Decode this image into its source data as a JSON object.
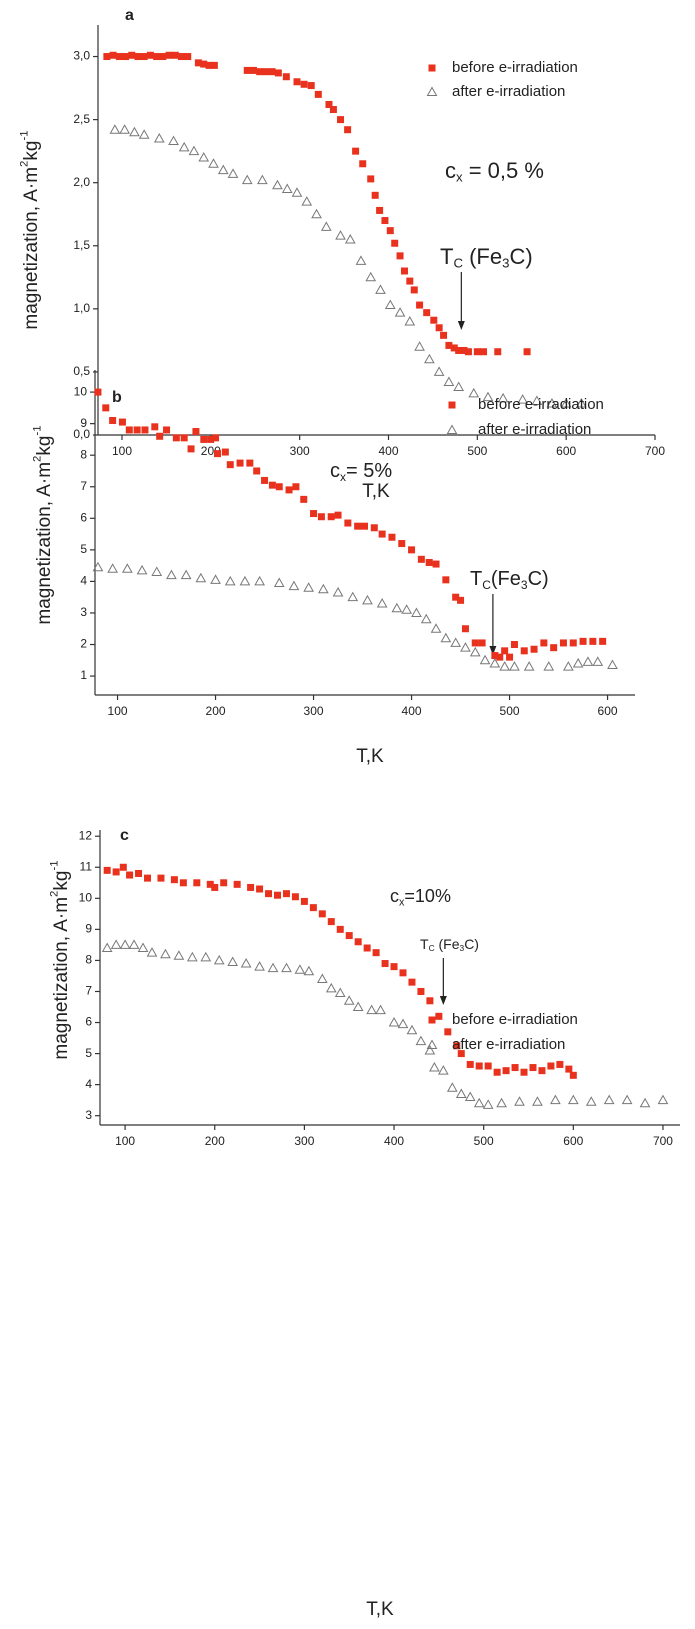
{
  "chart_data": [
    {
      "type": "scatter",
      "panel_label": "a",
      "x_label": "T,K",
      "y_label": [
        {
          "text": "magnetization, A·m"
        },
        {
          "sup": "2"
        },
        {
          "text": "kg"
        },
        {
          "sup": "-1"
        }
      ],
      "cx_label": [
        {
          "text": "c"
        },
        {
          "sub": "x"
        },
        {
          "text": " = 0,5 %"
        }
      ],
      "tc_label": [
        {
          "text": "T"
        },
        {
          "sub": "C"
        },
        {
          "text": " (Fe"
        },
        {
          "sub": "3"
        },
        {
          "text": "C)"
        }
      ],
      "tc_arrow_x": 482,
      "xlim": [
        73,
        700
      ],
      "xticks": [
        100,
        200,
        300,
        400,
        500,
        600,
        700
      ],
      "ylim": [
        0,
        3.25
      ],
      "yticks": [
        {
          "value": 0,
          "label": "0,0"
        },
        {
          "value": 0.5,
          "label": "0,5"
        },
        {
          "value": 1,
          "label": "1,0"
        },
        {
          "value": 1.5,
          "label": "1,5"
        },
        {
          "value": 2,
          "label": "2,0"
        },
        {
          "value": 2.5,
          "label": "2,5"
        },
        {
          "value": 3,
          "label": "3,0"
        }
      ],
      "series": [
        {
          "name": "before e-irradiation",
          "color": "#e8321e",
          "marker": "square",
          "x": [
            83,
            90,
            97,
            104,
            111,
            118,
            125,
            132,
            139,
            146,
            153,
            160,
            167,
            174,
            186,
            192,
            198,
            204,
            241,
            248,
            255,
            262,
            269,
            276,
            285,
            297,
            305,
            313,
            321,
            333,
            338,
            346,
            354,
            363,
            371,
            380,
            385,
            390,
            396,
            402,
            407,
            413,
            418,
            424,
            429,
            435,
            443,
            451,
            457,
            462,
            468,
            474,
            479,
            485,
            490,
            500,
            507,
            523,
            556
          ],
          "values": [
            3.0,
            3.01,
            3.0,
            3.0,
            3.01,
            3.0,
            3.0,
            3.01,
            3.0,
            3.0,
            3.01,
            3.01,
            3.0,
            3.0,
            2.95,
            2.94,
            2.93,
            2.93,
            2.89,
            2.89,
            2.88,
            2.88,
            2.88,
            2.87,
            2.84,
            2.8,
            2.78,
            2.77,
            2.7,
            2.62,
            2.58,
            2.5,
            2.42,
            2.25,
            2.15,
            2.03,
            1.9,
            1.78,
            1.7,
            1.62,
            1.52,
            1.42,
            1.3,
            1.22,
            1.15,
            1.03,
            0.97,
            0.91,
            0.85,
            0.79,
            0.71,
            0.69,
            0.67,
            0.67,
            0.66,
            0.66,
            0.66,
            0.66,
            0.66
          ]
        },
        {
          "name": "after e-irradiation",
          "color": "#777777",
          "marker": "triangle",
          "x": [
            92,
            103,
            114,
            125,
            142,
            158,
            170,
            181,
            192,
            203,
            214,
            225,
            241,
            258,
            275,
            286,
            297,
            308,
            319,
            330,
            346,
            357,
            369,
            380,
            391,
            402,
            413,
            424,
            435,
            446,
            457,
            468,
            479,
            496,
            512,
            529,
            551,
            567,
            584,
            600,
            617
          ],
          "values": [
            2.42,
            2.42,
            2.4,
            2.38,
            2.35,
            2.33,
            2.28,
            2.25,
            2.2,
            2.15,
            2.1,
            2.07,
            2.02,
            2.02,
            1.98,
            1.95,
            1.92,
            1.85,
            1.75,
            1.65,
            1.58,
            1.55,
            1.38,
            1.25,
            1.15,
            1.03,
            0.97,
            0.9,
            0.7,
            0.6,
            0.5,
            0.42,
            0.38,
            0.33,
            0.3,
            0.29,
            0.28,
            0.27,
            0.25,
            0.25,
            0.25
          ]
        }
      ]
    },
    {
      "type": "scatter",
      "panel_label": "b",
      "x_label": "T,K",
      "y_label": [
        {
          "text": "magnetization, A·m"
        },
        {
          "sup": "2"
        },
        {
          "text": "kg"
        },
        {
          "sup": "-1"
        }
      ],
      "cx_label": [
        {
          "text": "c"
        },
        {
          "sub": "x"
        },
        {
          "text": "= 5%"
        }
      ],
      "tc_label": [
        {
          "text": "T"
        },
        {
          "sub": "C"
        },
        {
          "text": "(Fe"
        },
        {
          "sub": "3"
        },
        {
          "text": "C)"
        }
      ],
      "tc_arrow_x": 483,
      "xlim": [
        77,
        628
      ],
      "xticks": [
        100,
        200,
        300,
        400,
        500,
        600
      ],
      "ylim": [
        0.4,
        10.7
      ],
      "yticks": [
        1,
        2,
        3,
        4,
        5,
        6,
        7,
        8,
        9,
        10
      ],
      "series": [
        {
          "name": "before e-irradiation",
          "color": "#e8321e",
          "marker": "square",
          "x": [
            80,
            88,
            95,
            105,
            112,
            120,
            128,
            138,
            143,
            150,
            160,
            168,
            175,
            180,
            188,
            195,
            200,
            202,
            210,
            215,
            225,
            235,
            242,
            250,
            258,
            265,
            275,
            282,
            290,
            300,
            308,
            318,
            325,
            335,
            345,
            352,
            362,
            370,
            380,
            390,
            400,
            410,
            418,
            425,
            435,
            445,
            450,
            455,
            465,
            472,
            485,
            490,
            495,
            500,
            505,
            515,
            525,
            535,
            545,
            555,
            565,
            575,
            585,
            595
          ],
          "values": [
            10.0,
            9.5,
            9.1,
            9.05,
            8.8,
            8.8,
            8.8,
            8.9,
            8.6,
            8.8,
            8.55,
            8.55,
            8.2,
            8.75,
            8.5,
            8.5,
            8.55,
            8.05,
            8.1,
            7.7,
            7.75,
            7.75,
            7.5,
            7.2,
            7.05,
            7.0,
            6.9,
            7.0,
            6.6,
            6.15,
            6.05,
            6.05,
            6.1,
            5.85,
            5.75,
            5.75,
            5.7,
            5.5,
            5.4,
            5.2,
            5.0,
            4.7,
            4.6,
            4.55,
            4.05,
            3.5,
            3.4,
            2.5,
            2.05,
            2.05,
            1.65,
            1.6,
            1.8,
            1.6,
            2.0,
            1.8,
            1.85,
            2.05,
            1.9,
            2.05,
            2.05,
            2.1,
            2.1,
            2.1
          ]
        },
        {
          "name": "after e-irradiation",
          "color": "#777777",
          "marker": "triangle",
          "x": [
            80,
            95,
            110,
            125,
            140,
            155,
            170,
            185,
            200,
            215,
            230,
            245,
            265,
            280,
            295,
            310,
            325,
            340,
            355,
            370,
            385,
            395,
            405,
            415,
            425,
            435,
            445,
            455,
            465,
            475,
            485,
            495,
            505,
            520,
            540,
            560,
            570,
            580,
            590,
            605
          ],
          "values": [
            4.45,
            4.4,
            4.4,
            4.35,
            4.3,
            4.2,
            4.2,
            4.1,
            4.05,
            4.0,
            4.0,
            4.0,
            3.95,
            3.85,
            3.8,
            3.75,
            3.65,
            3.5,
            3.4,
            3.3,
            3.15,
            3.1,
            3.0,
            2.8,
            2.5,
            2.2,
            2.05,
            1.9,
            1.75,
            1.5,
            1.4,
            1.3,
            1.3,
            1.3,
            1.3,
            1.3,
            1.4,
            1.45,
            1.45,
            1.35
          ]
        }
      ]
    },
    {
      "type": "scatter",
      "panel_label": "c",
      "x_label": "T,K",
      "y_label": [
        {
          "text": "magnetization, A·m"
        },
        {
          "sup": "2"
        },
        {
          "text": "kg"
        },
        {
          "sup": "-1"
        }
      ],
      "cx_label": [
        {
          "text": "c"
        },
        {
          "sub": "x"
        },
        {
          "text": "=10%"
        }
      ],
      "tc_label": [
        {
          "text": "T"
        },
        {
          "sub": "C"
        },
        {
          "text": " (Fe"
        },
        {
          "sub": "3"
        },
        {
          "text": "C)"
        }
      ],
      "tc_arrow_x": 455,
      "xlim": [
        72,
        719
      ],
      "xticks": [
        100,
        200,
        300,
        400,
        500,
        600,
        700
      ],
      "ylim": [
        2.7,
        12.2
      ],
      "yticks": [
        3,
        4,
        5,
        6,
        7,
        8,
        9,
        10,
        11,
        12
      ],
      "series": [
        {
          "name": "before e-irradiation",
          "color": "#e8321e",
          "marker": "square",
          "x": [
            80,
            90,
            98,
            105,
            115,
            125,
            140,
            155,
            165,
            180,
            195,
            200,
            210,
            225,
            240,
            250,
            260,
            270,
            280,
            290,
            300,
            310,
            320,
            330,
            340,
            350,
            360,
            370,
            380,
            390,
            400,
            410,
            420,
            430,
            440,
            450,
            460,
            470,
            475,
            485,
            495,
            505,
            515,
            525,
            535,
            545,
            555,
            565,
            575,
            585,
            595,
            600
          ],
          "values": [
            10.9,
            10.85,
            11.0,
            10.75,
            10.8,
            10.65,
            10.65,
            10.6,
            10.5,
            10.5,
            10.45,
            10.35,
            10.5,
            10.45,
            10.35,
            10.3,
            10.15,
            10.1,
            10.15,
            10.05,
            9.9,
            9.7,
            9.5,
            9.25,
            9.0,
            8.8,
            8.6,
            8.4,
            8.25,
            7.9,
            7.8,
            7.6,
            7.3,
            7.0,
            6.7,
            6.2,
            5.7,
            5.25,
            5.0,
            4.65,
            4.6,
            4.6,
            4.4,
            4.45,
            4.55,
            4.4,
            4.55,
            4.45,
            4.6,
            4.65,
            4.5,
            4.3
          ]
        },
        {
          "name": "after e-irradiation",
          "color": "#777777",
          "marker": "triangle",
          "x": [
            80,
            90,
            100,
            110,
            120,
            130,
            145,
            160,
            175,
            190,
            205,
            220,
            235,
            250,
            265,
            280,
            295,
            305,
            320,
            330,
            340,
            350,
            360,
            375,
            385,
            400,
            410,
            420,
            430,
            440,
            445,
            455,
            465,
            475,
            485,
            495,
            505,
            520,
            540,
            560,
            580,
            600,
            620,
            640,
            660,
            680,
            700
          ],
          "values": [
            8.4,
            8.5,
            8.5,
            8.5,
            8.4,
            8.25,
            8.2,
            8.15,
            8.1,
            8.1,
            8.0,
            7.95,
            7.9,
            7.8,
            7.75,
            7.75,
            7.7,
            7.65,
            7.4,
            7.1,
            6.95,
            6.7,
            6.5,
            6.4,
            6.4,
            6.0,
            5.95,
            5.75,
            5.4,
            5.1,
            4.55,
            4.45,
            3.9,
            3.7,
            3.6,
            3.4,
            3.35,
            3.4,
            3.45,
            3.45,
            3.5,
            3.5,
            3.45,
            3.5,
            3.5,
            3.4,
            3.5
          ]
        }
      ]
    }
  ]
}
